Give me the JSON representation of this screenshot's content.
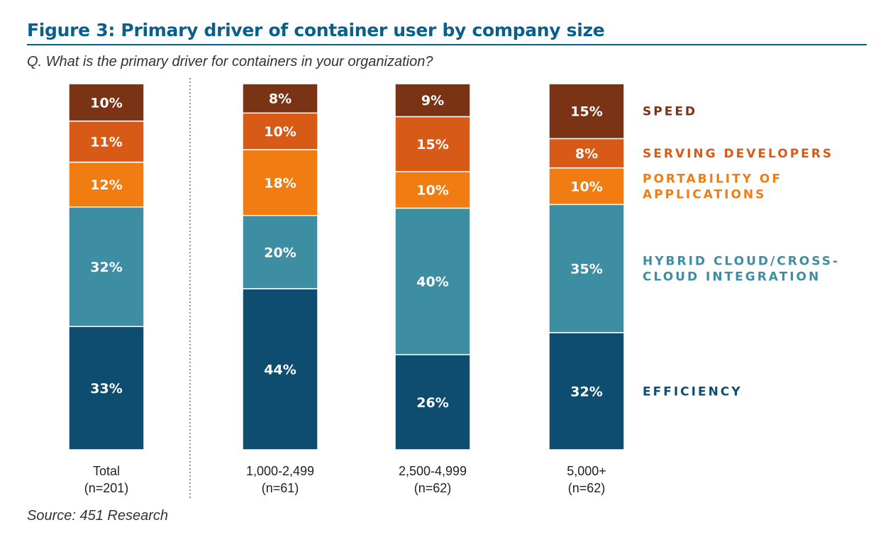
{
  "title": "Figure 3: Primary driver of container user by company size",
  "subtitle": "Q.  What is the primary driver for containers in your organization?",
  "source": "Source: 451 Research",
  "chart_data": {
    "type": "bar",
    "stacked": true,
    "unit": "%",
    "categories": [
      {
        "name": "Total",
        "n": "(n=201)"
      },
      {
        "name": "1,000-2,499",
        "n": "(n=61)"
      },
      {
        "name": "2,500-4,999",
        "n": "(n=62)"
      },
      {
        "name": "5,000+",
        "n": "(n=62)"
      }
    ],
    "series": [
      {
        "name": "EFFICIENCY",
        "color": "#0e4c70",
        "values": [
          33,
          44,
          26,
          32
        ],
        "labels": [
          "33%",
          "44%",
          "26%",
          "32%"
        ]
      },
      {
        "name": "HYBRID CLOUD/CROSS- CLOUD INTEGRATION",
        "legend_lines": [
          "HYBRID CLOUD/CROSS-",
          "CLOUD INTEGRATION"
        ],
        "color": "#3d8ea3",
        "values": [
          32,
          20,
          40,
          35
        ],
        "labels": [
          "32%",
          "20%",
          "40%",
          "35%"
        ]
      },
      {
        "name": "PORTABILITY OF APPLICATIONS",
        "legend_lines": [
          "PORTABILITY OF",
          "APPLICATIONS"
        ],
        "color": "#f07c12",
        "values": [
          12,
          18,
          10,
          10
        ],
        "labels": [
          "12%",
          "18%",
          "10%",
          "10%"
        ]
      },
      {
        "name": "SERVING DEVELOPERS",
        "color": "#d75a16",
        "values": [
          11,
          10,
          15,
          8
        ],
        "labels": [
          "11%",
          "10%",
          "15%",
          "8%"
        ]
      },
      {
        "name": "SPEED",
        "color": "#7b3315",
        "values": [
          10,
          8,
          9,
          15
        ],
        "labels": [
          "10%",
          "8%",
          "9%",
          "15%"
        ]
      }
    ],
    "legend_placement": "right",
    "grid": false,
    "divider_after_category": 0
  }
}
